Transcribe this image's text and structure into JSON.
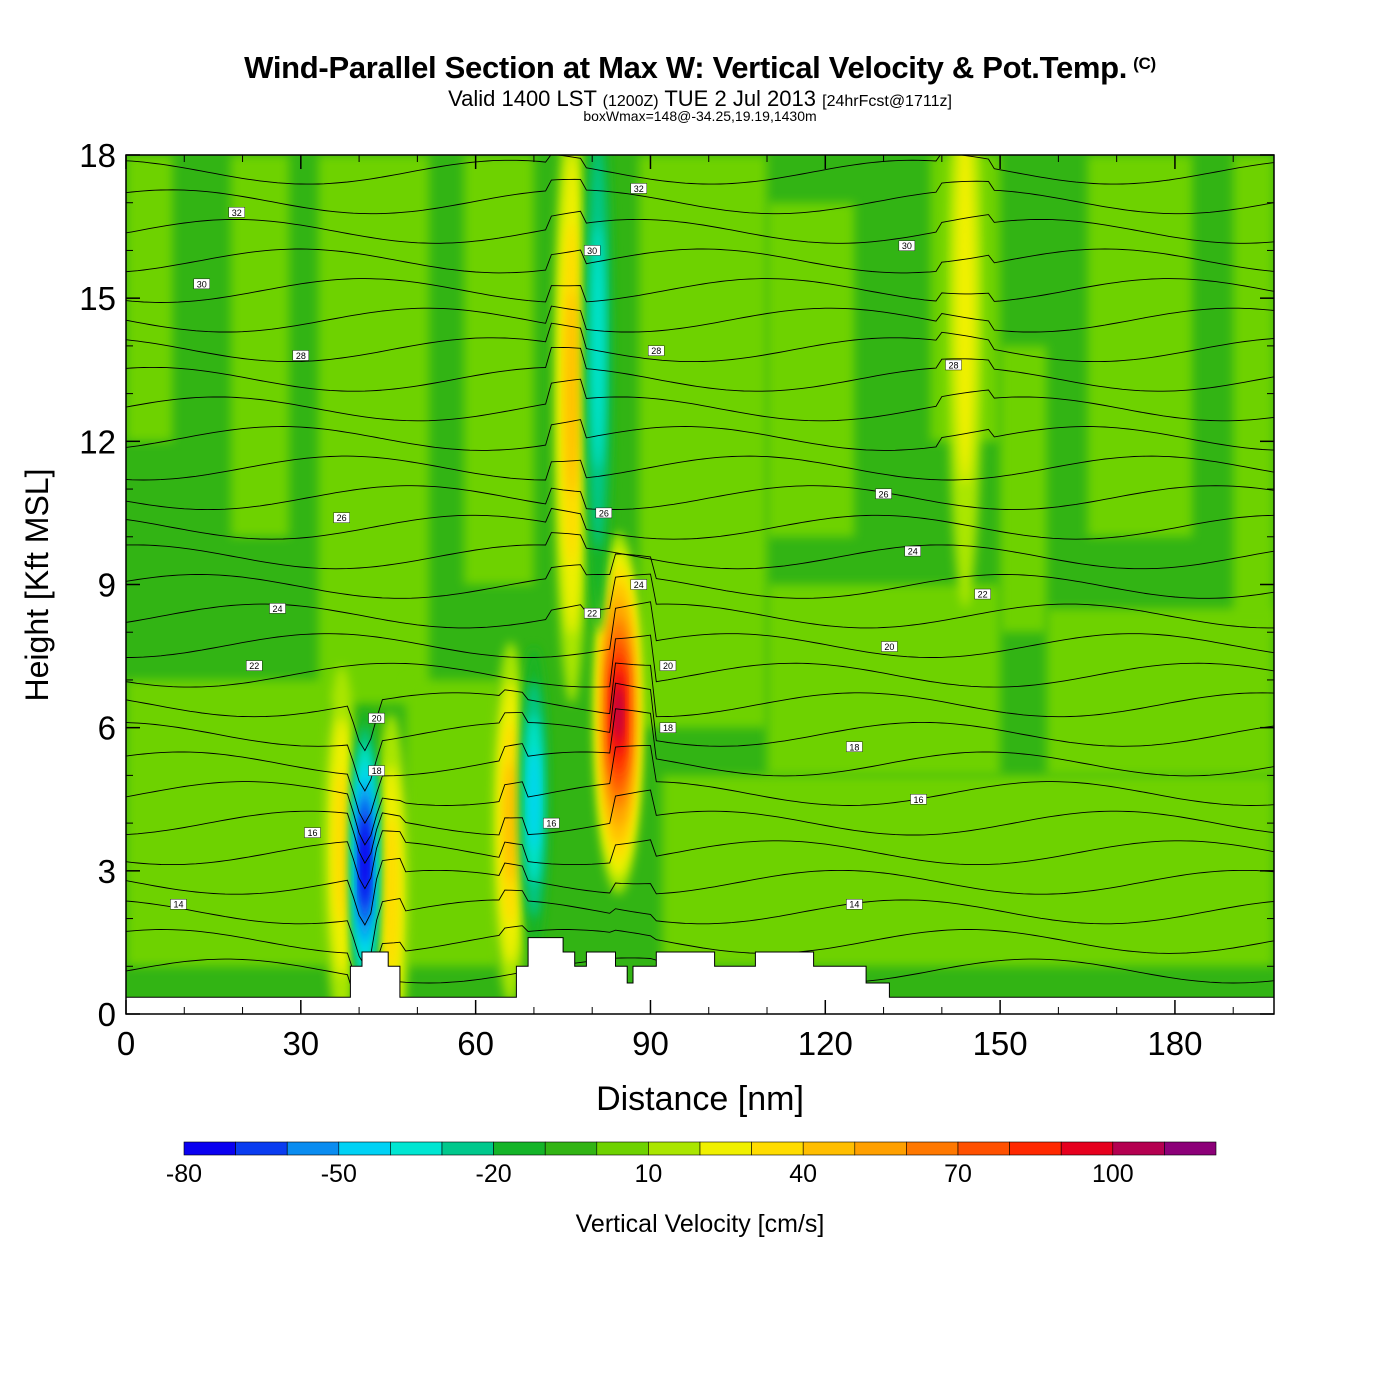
{
  "title": {
    "main": "Wind-Parallel Section at Max W: Vertical Velocity & Pot.Temp.",
    "copyright": "(C)",
    "valid_prefix": "Valid 1400 LST",
    "valid_zulu": "(1200Z)",
    "valid_date": "TUE 2 Jul 2013",
    "forecast": "[24hrFcst@1711z]",
    "boxwmax": "boxWmax=148@-34.25,19.19,1430m"
  },
  "chart_data": {
    "type": "heatmap",
    "title": "Wind-Parallel Section at Max W: Vertical Velocity & Pot.Temp.",
    "xlabel": "Distance [nm]",
    "ylabel": "Height [Kft MSL]",
    "xlim": [
      0,
      197
    ],
    "ylim": [
      0,
      18
    ],
    "x_ticks": [
      "0",
      "30",
      "60",
      "90",
      "120",
      "150",
      "180"
    ],
    "y_ticks": [
      "0",
      "3",
      "6",
      "9",
      "12",
      "15",
      "18"
    ],
    "colorbar": {
      "label": "Vertical Velocity [cm/s]",
      "levels": [
        -80,
        -70,
        -60,
        -50,
        -40,
        -30,
        -20,
        -10,
        0,
        10,
        20,
        30,
        40,
        50,
        60,
        70,
        80,
        90,
        100,
        110,
        120
      ],
      "tick_labels": [
        "-80",
        "-50",
        "-20",
        "10",
        "40",
        "70",
        "100"
      ],
      "colors": [
        "#0a00f0",
        "#0a3cf0",
        "#0a8cf0",
        "#00d2f5",
        "#00e6d2",
        "#00c88c",
        "#14b428",
        "#32b414",
        "#6ed200",
        "#aae600",
        "#f0f000",
        "#ffdc00",
        "#ffbe00",
        "#ffa000",
        "#ff7800",
        "#ff5000",
        "#ff2800",
        "#e6001e",
        "#b40050",
        "#8c0078"
      ]
    },
    "updrafts": [
      {
        "x": 84.5,
        "z": 6.3,
        "peak_cms": 100
      },
      {
        "x": 76.5,
        "z": 13,
        "peak_cms": 40
      },
      {
        "x": 66,
        "z": 4,
        "peak_cms": 40
      },
      {
        "x": 37,
        "z": 3.5,
        "peak_cms": 30
      },
      {
        "x": 45.5,
        "z": 2.5,
        "peak_cms": 30
      },
      {
        "x": 144,
        "z": 15,
        "peak_cms": 20
      }
    ],
    "downdrafts": [
      {
        "x": 41,
        "z": 3.2,
        "peak_cms": -80
      },
      {
        "x": 70,
        "z": 4.5,
        "peak_cms": -40
      },
      {
        "x": 81,
        "z": 14,
        "peak_cms": -30
      }
    ],
    "theta_contour_labels": [
      {
        "text": "32",
        "x": 19,
        "z": 16.8
      },
      {
        "text": "32",
        "x": 88,
        "z": 17.3
      },
      {
        "text": "30",
        "x": 13,
        "z": 15.3
      },
      {
        "text": "30",
        "x": 80,
        "z": 16.0
      },
      {
        "text": "30",
        "x": 134,
        "z": 16.1
      },
      {
        "text": "28",
        "x": 30,
        "z": 13.8
      },
      {
        "text": "28",
        "x": 91,
        "z": 13.9
      },
      {
        "text": "28",
        "x": 142,
        "z": 13.6
      },
      {
        "text": "26",
        "x": 37,
        "z": 10.4
      },
      {
        "text": "26",
        "x": 82,
        "z": 10.5
      },
      {
        "text": "26",
        "x": 130,
        "z": 10.9
      },
      {
        "text": "24",
        "x": 26,
        "z": 8.5
      },
      {
        "text": "24",
        "x": 88,
        "z": 9.0
      },
      {
        "text": "24",
        "x": 135,
        "z": 9.7
      },
      {
        "text": "22",
        "x": 22,
        "z": 7.3
      },
      {
        "text": "22",
        "x": 80,
        "z": 8.4
      },
      {
        "text": "22",
        "x": 147,
        "z": 8.8
      },
      {
        "text": "20",
        "x": 43,
        "z": 6.2
      },
      {
        "text": "20",
        "x": 93,
        "z": 7.3
      },
      {
        "text": "20",
        "x": 131,
        "z": 7.7
      },
      {
        "text": "18",
        "x": 43,
        "z": 5.1
      },
      {
        "text": "18",
        "x": 93,
        "z": 6.0
      },
      {
        "text": "18",
        "x": 125,
        "z": 5.6
      },
      {
        "text": "16",
        "x": 32,
        "z": 3.8
      },
      {
        "text": "16",
        "x": 73,
        "z": 4.0
      },
      {
        "text": "16",
        "x": 136,
        "z": 4.5
      },
      {
        "text": "14",
        "x": 9,
        "z": 2.3
      },
      {
        "text": "14",
        "x": 125,
        "z": 2.3
      }
    ],
    "terrain": [
      [
        0,
        0.35
      ],
      [
        38.5,
        0.35
      ],
      [
        38.5,
        1
      ],
      [
        40.5,
        1
      ],
      [
        40.5,
        1.3
      ],
      [
        45,
        1.3
      ],
      [
        45,
        1
      ],
      [
        47,
        1
      ],
      [
        47,
        0.35
      ],
      [
        67,
        0.35
      ],
      [
        67,
        1
      ],
      [
        69,
        1
      ],
      [
        69,
        1.6
      ],
      [
        75,
        1.6
      ],
      [
        75,
        1.3
      ],
      [
        77,
        1.3
      ],
      [
        77,
        1
      ],
      [
        79,
        1
      ],
      [
        79,
        1.3
      ],
      [
        84,
        1.3
      ],
      [
        84,
        1
      ],
      [
        86,
        1
      ],
      [
        86,
        0.65
      ],
      [
        87,
        0.65
      ],
      [
        87,
        1
      ],
      [
        91,
        1
      ],
      [
        91,
        1.3
      ],
      [
        101,
        1.3
      ],
      [
        101,
        1
      ],
      [
        108,
        1
      ],
      [
        108,
        1.3
      ],
      [
        118,
        1.3
      ],
      [
        118,
        1
      ],
      [
        127,
        1
      ],
      [
        127,
        0.65
      ],
      [
        131,
        0.65
      ],
      [
        131,
        0.35
      ],
      [
        197,
        0.35
      ]
    ]
  }
}
